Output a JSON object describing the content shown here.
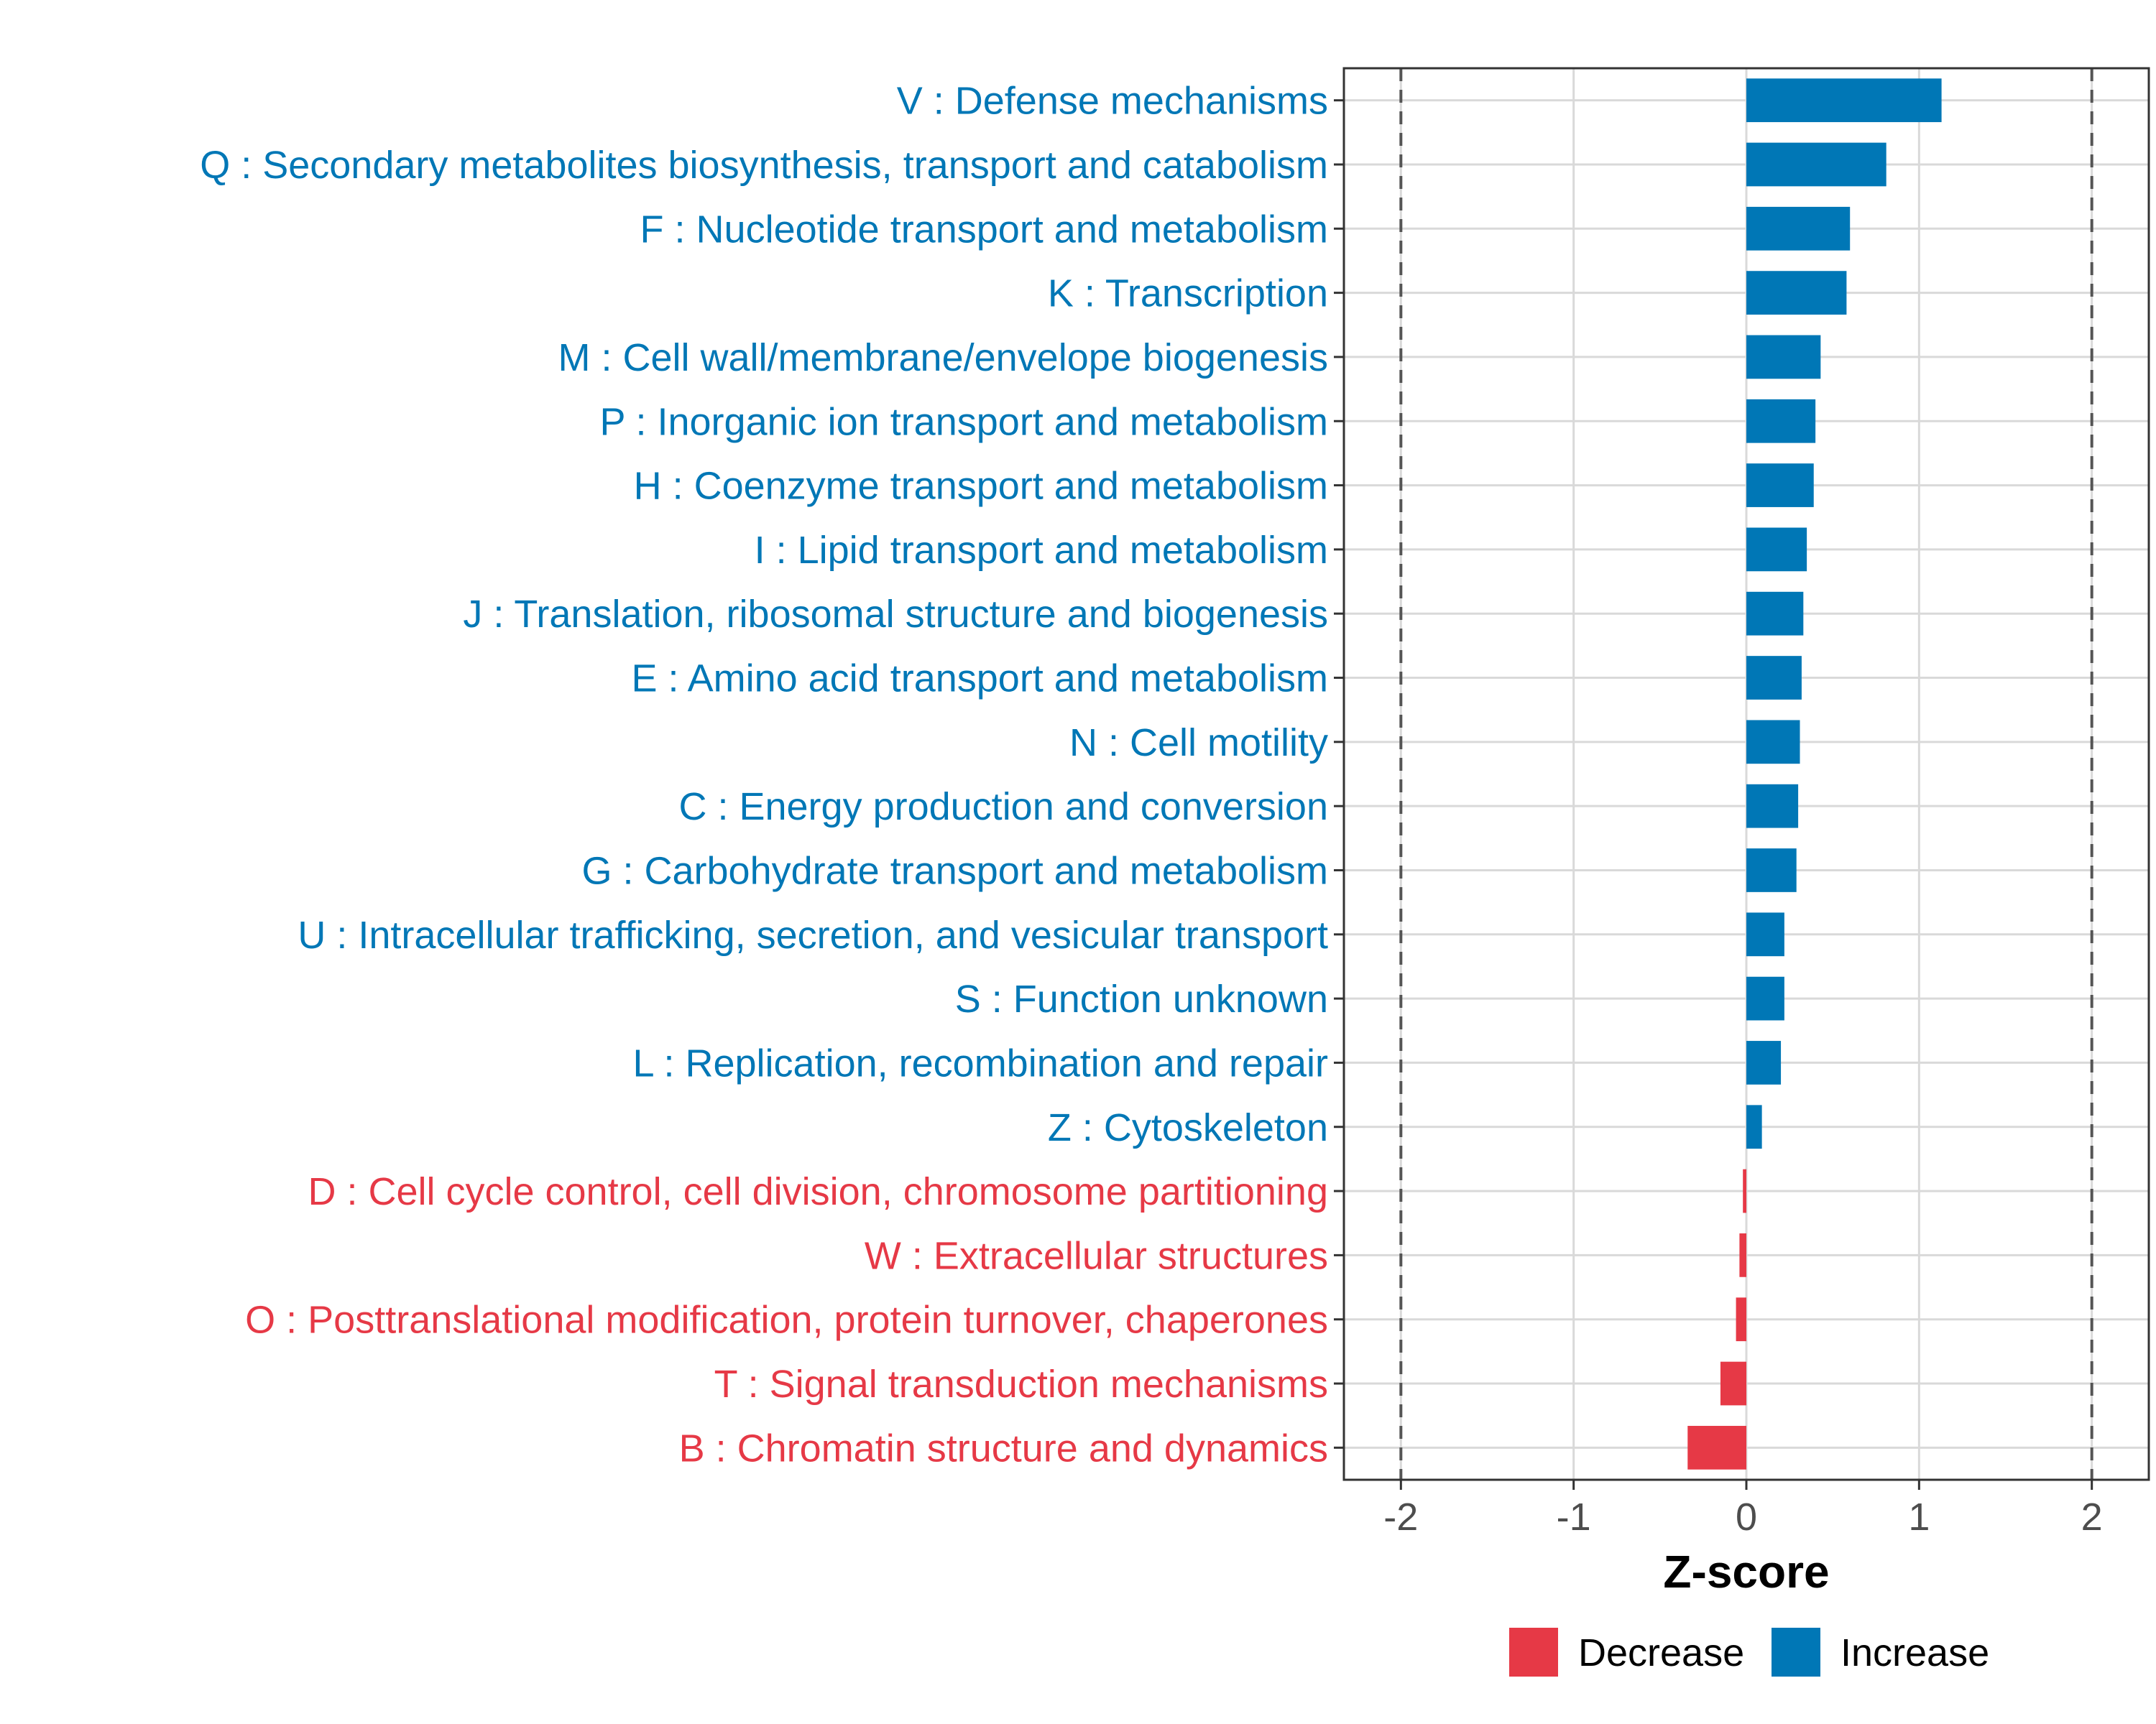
{
  "chart_data": {
    "type": "bar",
    "orientation": "horizontal",
    "title": "",
    "xlabel": "Z-score",
    "ylabel": "",
    "xlim": [
      -2.33,
      2.33
    ],
    "xticks": [
      -2,
      -1,
      0,
      1,
      2
    ],
    "xtick_labels": [
      "-2",
      "-1",
      "0",
      "1",
      "2"
    ],
    "threshold_lines": [
      -2,
      2
    ],
    "grid": true,
    "legend_position": "bottom",
    "categories": [
      "V : Defense mechanisms",
      "Q : Secondary metabolites biosynthesis, transport and catabolism",
      "F : Nucleotide transport and metabolism",
      "K : Transcription",
      "M : Cell wall/membrane/envelope biogenesis",
      "P : Inorganic ion transport and metabolism",
      "H : Coenzyme transport and metabolism",
      "I : Lipid transport and metabolism",
      "J : Translation, ribosomal structure and biogenesis",
      "E : Amino acid transport and metabolism",
      "N : Cell motility",
      "C : Energy production and conversion",
      "G : Carbohydrate transport and metabolism",
      "U : Intracellular trafficking, secretion, and vesicular transport",
      "S : Function unknown",
      "L : Replication, recombination and repair",
      "Z : Cytoskeleton",
      "D : Cell cycle control, cell division, chromosome partitioning",
      "W : Extracellular structures",
      "O : Posttranslational modification, protein turnover, chaperones",
      "T : Signal transduction mechanisms",
      "B : Chromatin structure and dynamics"
    ],
    "values": [
      1.13,
      0.81,
      0.6,
      0.58,
      0.43,
      0.4,
      0.39,
      0.35,
      0.33,
      0.32,
      0.31,
      0.3,
      0.29,
      0.22,
      0.22,
      0.2,
      0.09,
      -0.02,
      -0.04,
      -0.06,
      -0.15,
      -0.34
    ],
    "groups": [
      "Increase",
      "Increase",
      "Increase",
      "Increase",
      "Increase",
      "Increase",
      "Increase",
      "Increase",
      "Increase",
      "Increase",
      "Increase",
      "Increase",
      "Increase",
      "Increase",
      "Increase",
      "Increase",
      "Increase",
      "Decrease",
      "Decrease",
      "Decrease",
      "Decrease",
      "Decrease"
    ],
    "legend": [
      {
        "label": "Decrease",
        "color": "#E63946"
      },
      {
        "label": "Increase",
        "color": "#0077B6"
      }
    ]
  },
  "colors": {
    "increase": "#0077B6",
    "decrease": "#E63946",
    "grid": "#d9d9d9",
    "threshold": "#555555",
    "panel_border": "#333333"
  }
}
